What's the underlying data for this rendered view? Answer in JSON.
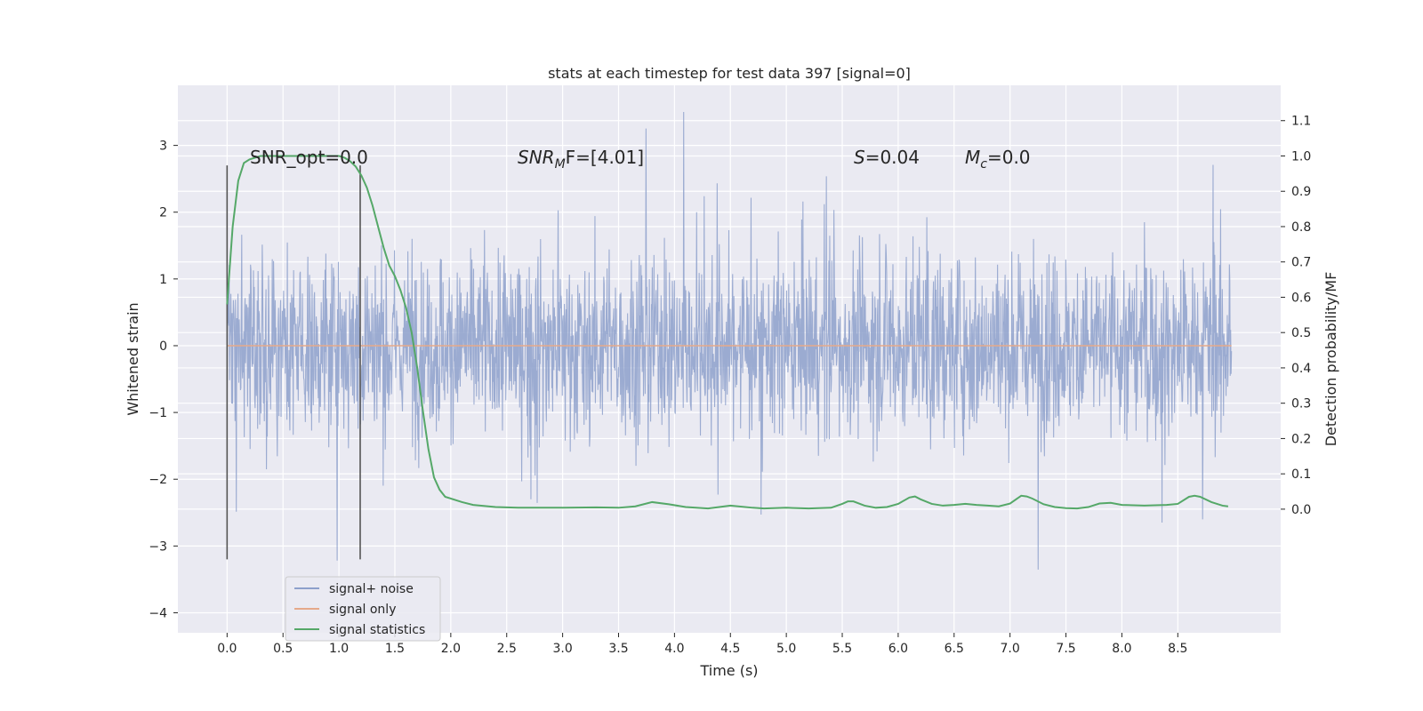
{
  "chart_data": {
    "type": "line",
    "title": "stats at each timestep for test data 397 [signal=0]",
    "xlabel": "Time (s)",
    "ylabel": "Whitened strain",
    "ylabel_right": "Detection probability/MF",
    "xlim": [
      -0.44,
      9.42
    ],
    "ylim": [
      -4.3,
      3.9
    ],
    "ylim_right": [
      -0.35,
      1.2
    ],
    "xticks": [
      0.0,
      0.5,
      1.0,
      1.5,
      2.0,
      2.5,
      3.0,
      3.5,
      4.0,
      4.5,
      5.0,
      5.5,
      6.0,
      6.5,
      7.0,
      7.5,
      8.0,
      8.5
    ],
    "xtick_labels": [
      "0.0",
      "0.5",
      "1.0",
      "1.5",
      "2.0",
      "2.5",
      "3.0",
      "3.5",
      "4.0",
      "4.5",
      "5.0",
      "5.5",
      "6.0",
      "6.5",
      "7.0",
      "7.5",
      "8.0",
      "8.5"
    ],
    "yticks": [
      3,
      2,
      1,
      0,
      -1,
      -2,
      -3,
      -4
    ],
    "ytick_labels": [
      "3",
      "2",
      "1",
      "0",
      "−1",
      "−2",
      "−3",
      "−4"
    ],
    "yticks_right": [
      1.1,
      1.0,
      0.9,
      0.8,
      0.7,
      0.6,
      0.5,
      0.4,
      0.3,
      0.2,
      0.1,
      0.0
    ],
    "ytick_labels_right": [
      "1.1",
      "1.0",
      "0.9",
      "0.8",
      "0.7",
      "0.6",
      "0.5",
      "0.4",
      "0.3",
      "0.2",
      "0.1",
      "0.0"
    ],
    "grid": true,
    "legend_position": "bottom-left",
    "legend": [
      {
        "label": "signal+ noise",
        "color": "#8da0cb"
      },
      {
        "label": "signal only",
        "color": "#e5a98a"
      },
      {
        "label": "signal statistics",
        "color": "#55a868"
      }
    ],
    "noise_series": {
      "name": "signal+ noise",
      "color": "#8da0cb",
      "x_start": 0.0,
      "x_end": 8.98,
      "typical_range": [
        -1.6,
        1.6
      ],
      "peak_range": [
        -3.6,
        3.5
      ]
    },
    "signal_series": {
      "name": "signal only",
      "color": "#e5a98a",
      "x": [
        0.0,
        8.98
      ],
      "y": [
        0.0,
        0.0
      ]
    },
    "statistics_series": {
      "name": "signal statistics",
      "color": "#55a868",
      "axis": "right",
      "x": [
        0.0,
        0.05,
        0.1,
        0.15,
        0.2,
        0.3,
        0.4,
        0.6,
        0.8,
        1.0,
        1.05,
        1.1,
        1.15,
        1.2,
        1.25,
        1.3,
        1.35,
        1.4,
        1.45,
        1.5,
        1.55,
        1.6,
        1.65,
        1.7,
        1.75,
        1.8,
        1.85,
        1.9,
        1.95,
        2.0,
        2.1,
        2.2,
        2.4,
        2.6,
        2.8,
        3.0,
        3.3,
        3.5,
        3.65,
        3.8,
        3.95,
        4.1,
        4.3,
        4.5,
        4.7,
        4.8,
        5.0,
        5.2,
        5.4,
        5.5,
        5.55,
        5.6,
        5.7,
        5.8,
        5.9,
        6.0,
        6.1,
        6.15,
        6.2,
        6.3,
        6.4,
        6.5,
        6.6,
        6.7,
        6.8,
        6.9,
        7.0,
        7.1,
        7.15,
        7.2,
        7.3,
        7.4,
        7.5,
        7.6,
        7.7,
        7.8,
        7.9,
        8.0,
        8.2,
        8.4,
        8.5,
        8.6,
        8.65,
        8.7,
        8.8,
        8.9,
        8.95
      ],
      "y": [
        0.58,
        0.8,
        0.93,
        0.98,
        0.99,
        1.0,
        1.0,
        1.0,
        1.0,
        1.0,
        0.995,
        0.985,
        0.97,
        0.945,
        0.91,
        0.86,
        0.8,
        0.74,
        0.69,
        0.66,
        0.62,
        0.57,
        0.5,
        0.4,
        0.28,
        0.17,
        0.09,
        0.055,
        0.035,
        0.03,
        0.02,
        0.012,
        0.006,
        0.004,
        0.004,
        0.004,
        0.005,
        0.004,
        0.008,
        0.02,
        0.014,
        0.006,
        0.002,
        0.01,
        0.004,
        0.002,
        0.004,
        0.002,
        0.004,
        0.015,
        0.022,
        0.022,
        0.01,
        0.004,
        0.006,
        0.015,
        0.033,
        0.036,
        0.028,
        0.015,
        0.01,
        0.012,
        0.015,
        0.012,
        0.01,
        0.008,
        0.016,
        0.038,
        0.036,
        0.03,
        0.014,
        0.006,
        0.003,
        0.002,
        0.006,
        0.016,
        0.018,
        0.012,
        0.01,
        0.012,
        0.015,
        0.035,
        0.038,
        0.035,
        0.02,
        0.01,
        0.008
      ]
    },
    "vlines": [
      {
        "x": 0.0,
        "y_range": [
          -3.2,
          2.7
        ]
      },
      {
        "x": 1.19,
        "y_range": [
          -3.2,
          2.7
        ]
      }
    ],
    "annotations": [
      {
        "id": "snr-opt",
        "text": "SNR_opt=0.0",
        "x": 0.2,
        "y": 2.75
      },
      {
        "id": "snr-mf",
        "text_before": "SNR",
        "subscript": "M",
        "text_after": "F=[4.01]",
        "x": 2.6,
        "y": 2.75,
        "italic": true
      },
      {
        "id": "s-value",
        "text_italic": "S",
        "text_after": "=0.04",
        "x": 5.6,
        "y": 2.75
      },
      {
        "id": "mc-value",
        "text_italic": "M",
        "subscript": "c",
        "text_after": "=0.0",
        "x": 6.6,
        "y": 2.75
      }
    ]
  }
}
